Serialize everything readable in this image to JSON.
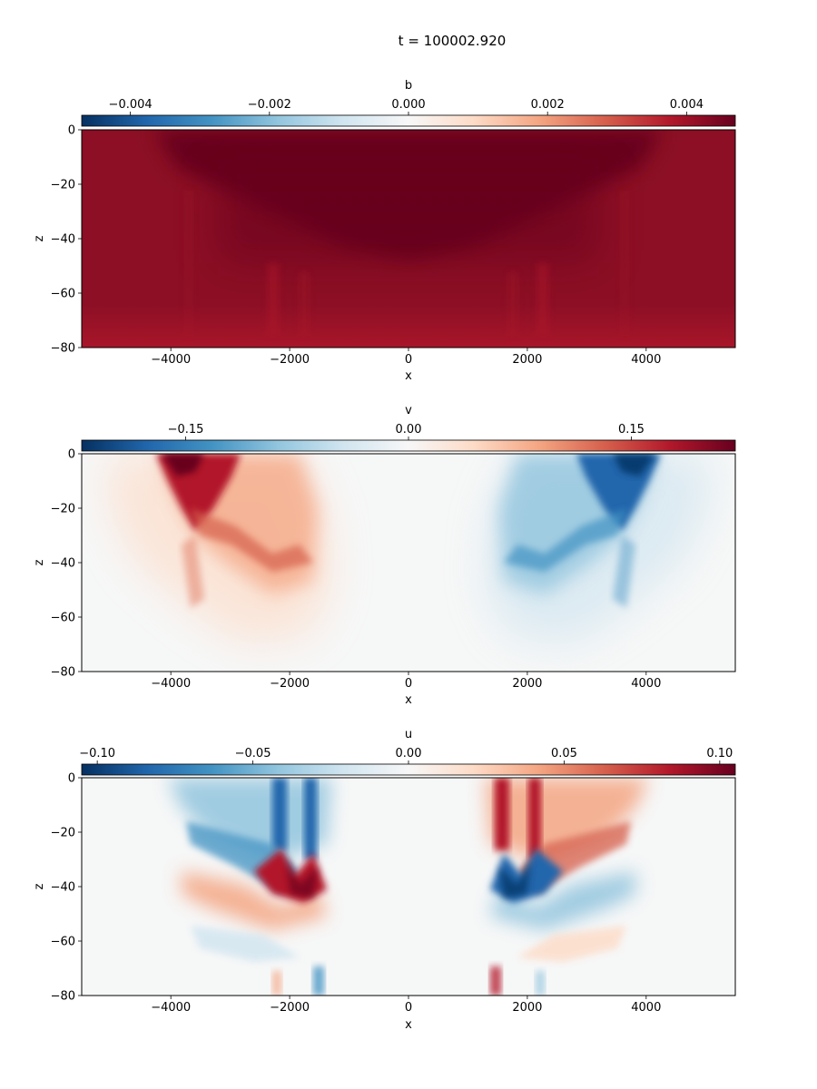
{
  "figure": {
    "title": "t = 100002.920"
  },
  "chart_data": [
    {
      "type": "heatmap",
      "colorbar_label": "b",
      "colorbar_ticks": [
        -0.004,
        -0.002,
        0.0,
        0.002,
        0.004
      ],
      "colorbar_tick_labels": [
        "−0.004",
        "−0.002",
        "0.000",
        "0.002",
        "0.004"
      ],
      "clim": [
        -0.0047,
        0.0047
      ],
      "colormap": "RdBu_r",
      "xlabel": "x",
      "ylabel": "z",
      "xlim": [
        -5500,
        5500
      ],
      "ylim": [
        -80,
        0
      ],
      "xticks": [
        -4000,
        -2000,
        0,
        2000,
        4000
      ],
      "xtick_labels": [
        "−4000",
        "−2000",
        "0",
        "2000",
        "4000"
      ],
      "yticks": [
        0,
        -20,
        -40,
        -60,
        -80
      ],
      "ytick_labels": [
        "0",
        "−20",
        "−40",
        "−60",
        "−80"
      ]
    },
    {
      "type": "heatmap",
      "colorbar_label": "v",
      "colorbar_ticks": [
        -0.15,
        0.0,
        0.15
      ],
      "colorbar_tick_labels": [
        "−0.15",
        "0.00",
        "0.15"
      ],
      "clim": [
        -0.22,
        0.22
      ],
      "colormap": "RdBu_r",
      "xlabel": "x",
      "ylabel": "z",
      "xlim": [
        -5500,
        5500
      ],
      "ylim": [
        -80,
        0
      ],
      "xticks": [
        -4000,
        -2000,
        0,
        2000,
        4000
      ],
      "xtick_labels": [
        "−4000",
        "−2000",
        "0",
        "2000",
        "4000"
      ],
      "yticks": [
        0,
        -20,
        -40,
        -60,
        -80
      ],
      "ytick_labels": [
        "0",
        "−20",
        "−40",
        "−60",
        "−80"
      ]
    },
    {
      "type": "heatmap",
      "colorbar_label": "u",
      "colorbar_ticks": [
        -0.1,
        -0.05,
        0.0,
        0.05,
        0.1
      ],
      "colorbar_tick_labels": [
        "−0.10",
        "−0.05",
        "0.00",
        "0.05",
        "0.10"
      ],
      "clim": [
        -0.105,
        0.105
      ],
      "colormap": "RdBu_r",
      "xlabel": "x",
      "ylabel": "z",
      "xlim": [
        -5500,
        5500
      ],
      "ylim": [
        -80,
        0
      ],
      "xticks": [
        -4000,
        -2000,
        0,
        2000,
        4000
      ],
      "xtick_labels": [
        "−4000",
        "−2000",
        "0",
        "2000",
        "4000"
      ],
      "yticks": [
        0,
        -20,
        -40,
        -60,
        -80
      ],
      "ytick_labels": [
        "0",
        "−20",
        "−40",
        "−60",
        "−80"
      ]
    }
  ]
}
